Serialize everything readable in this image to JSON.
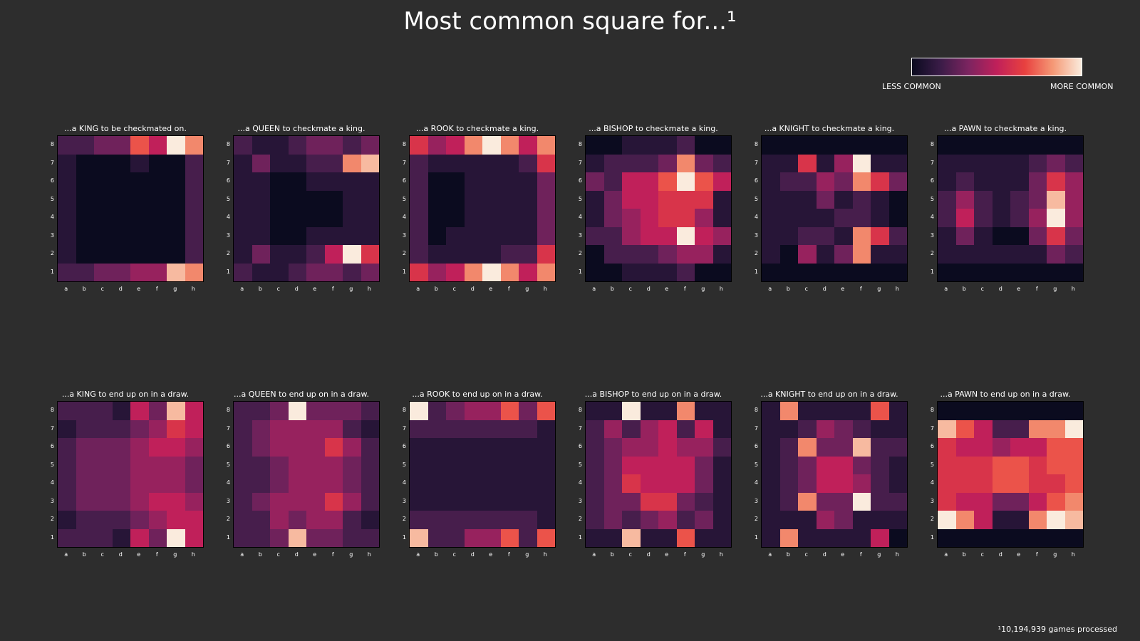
{
  "title": "Most common square for...¹",
  "colorbar": {
    "less_label": "LESS COMMON",
    "more_label": "MORE COMMON",
    "colors": [
      "#0b0b1f",
      "#3a1c47",
      "#7c2460",
      "#c0205a",
      "#e8413f",
      "#f59a77",
      "#faebdd"
    ]
  },
  "footnote": "¹10,194,939 games processed",
  "chart_data": {
    "type": "heatmap",
    "files": [
      "a",
      "b",
      "c",
      "d",
      "e",
      "f",
      "g",
      "h"
    ],
    "ranks": [
      "8",
      "7",
      "6",
      "5",
      "4",
      "3",
      "2",
      "1"
    ],
    "value_scale": "relative frequency 0-10 (rows listed from rank 8 down to rank 1)",
    "panels": [
      {
        "title": "...a KING to be checkmated on.",
        "grid": [
          [
            2,
            2,
            3,
            3,
            7,
            5,
            10,
            8
          ],
          [
            1,
            0,
            0,
            0,
            1,
            0,
            0,
            2
          ],
          [
            1,
            0,
            0,
            0,
            0,
            0,
            0,
            2
          ],
          [
            1,
            0,
            0,
            0,
            0,
            0,
            0,
            2
          ],
          [
            1,
            0,
            0,
            0,
            0,
            0,
            0,
            2
          ],
          [
            1,
            0,
            0,
            0,
            0,
            0,
            0,
            2
          ],
          [
            1,
            0,
            0,
            0,
            0,
            0,
            0,
            2
          ],
          [
            2,
            2,
            3,
            3,
            4,
            4,
            9,
            8
          ]
        ]
      },
      {
        "title": "...a QUEEN to checkmate a king.",
        "grid": [
          [
            2,
            1,
            1,
            2,
            3,
            3,
            2,
            3
          ],
          [
            1,
            3,
            1,
            1,
            2,
            2,
            8,
            9
          ],
          [
            1,
            1,
            0,
            0,
            1,
            1,
            1,
            1
          ],
          [
            1,
            1,
            0,
            0,
            0,
            0,
            1,
            1
          ],
          [
            1,
            1,
            0,
            0,
            0,
            0,
            1,
            1
          ],
          [
            1,
            1,
            0,
            0,
            1,
            1,
            1,
            1
          ],
          [
            1,
            3,
            1,
            1,
            2,
            5,
            10,
            6
          ],
          [
            2,
            1,
            1,
            2,
            3,
            3,
            2,
            3
          ]
        ]
      },
      {
        "title": "...a ROOK to checkmate a king.",
        "grid": [
          [
            6,
            4,
            5,
            8,
            10,
            8,
            5,
            8
          ],
          [
            2,
            1,
            1,
            1,
            1,
            1,
            2,
            6
          ],
          [
            2,
            0,
            0,
            1,
            1,
            1,
            1,
            3
          ],
          [
            2,
            0,
            0,
            1,
            1,
            1,
            1,
            3
          ],
          [
            2,
            0,
            0,
            1,
            1,
            1,
            1,
            3
          ],
          [
            2,
            0,
            1,
            1,
            1,
            1,
            1,
            3
          ],
          [
            2,
            1,
            1,
            1,
            1,
            2,
            2,
            6
          ],
          [
            6,
            4,
            5,
            8,
            10,
            8,
            5,
            8
          ]
        ]
      },
      {
        "title": "...a BISHOP to checkmate a king.",
        "grid": [
          [
            0,
            0,
            1,
            1,
            1,
            2,
            0,
            0
          ],
          [
            1,
            2,
            2,
            2,
            3,
            8,
            3,
            2
          ],
          [
            3,
            2,
            5,
            5,
            7,
            10,
            7,
            5
          ],
          [
            1,
            3,
            5,
            5,
            6,
            6,
            6,
            1
          ],
          [
            1,
            3,
            4,
            5,
            6,
            6,
            4,
            1
          ],
          [
            2,
            2,
            4,
            5,
            5,
            10,
            5,
            4
          ],
          [
            0,
            2,
            2,
            2,
            3,
            4,
            4,
            1
          ],
          [
            0,
            0,
            1,
            1,
            1,
            2,
            0,
            0
          ]
        ]
      },
      {
        "title": "...a KNIGHT to checkmate a king.",
        "grid": [
          [
            0,
            0,
            0,
            0,
            0,
            0,
            0,
            0
          ],
          [
            1,
            1,
            6,
            1,
            4,
            10,
            1,
            1
          ],
          [
            1,
            2,
            2,
            4,
            3,
            8,
            6,
            3
          ],
          [
            1,
            1,
            1,
            3,
            1,
            2,
            1,
            0
          ],
          [
            1,
            1,
            1,
            1,
            2,
            2,
            1,
            0
          ],
          [
            1,
            1,
            2,
            2,
            1,
            8,
            6,
            2
          ],
          [
            1,
            0,
            4,
            1,
            3,
            8,
            1,
            1
          ],
          [
            0,
            0,
            0,
            0,
            0,
            0,
            0,
            0
          ]
        ]
      },
      {
        "title": "...a PAWN to checkmate a king.",
        "grid": [
          [
            0,
            0,
            0,
            0,
            0,
            0,
            0,
            0
          ],
          [
            1,
            1,
            1,
            1,
            1,
            2,
            3,
            2
          ],
          [
            1,
            2,
            1,
            1,
            1,
            3,
            6,
            4
          ],
          [
            2,
            4,
            2,
            1,
            2,
            3,
            9,
            4
          ],
          [
            2,
            5,
            2,
            1,
            2,
            4,
            10,
            4
          ],
          [
            1,
            3,
            1,
            0,
            0,
            3,
            6,
            3
          ],
          [
            1,
            1,
            1,
            1,
            1,
            1,
            3,
            2
          ],
          [
            0,
            0,
            0,
            0,
            0,
            0,
            0,
            0
          ]
        ]
      },
      {
        "title": "...a KING to end up on in a draw.",
        "grid": [
          [
            2,
            2,
            2,
            1,
            5,
            3,
            9,
            5
          ],
          [
            1,
            2,
            2,
            2,
            3,
            4,
            6,
            5
          ],
          [
            2,
            3,
            3,
            3,
            4,
            5,
            5,
            4
          ],
          [
            2,
            3,
            3,
            3,
            4,
            4,
            4,
            3
          ],
          [
            2,
            3,
            3,
            3,
            4,
            4,
            4,
            3
          ],
          [
            2,
            3,
            3,
            3,
            4,
            5,
            5,
            4
          ],
          [
            1,
            2,
            2,
            2,
            3,
            4,
            5,
            5
          ],
          [
            2,
            2,
            2,
            1,
            5,
            3,
            10,
            5
          ]
        ]
      },
      {
        "title": "...a QUEEN to end up on in a draw.",
        "grid": [
          [
            2,
            2,
            3,
            10,
            3,
            3,
            3,
            2
          ],
          [
            2,
            3,
            4,
            4,
            4,
            4,
            2,
            1
          ],
          [
            2,
            3,
            4,
            4,
            4,
            6,
            4,
            2
          ],
          [
            2,
            2,
            3,
            4,
            4,
            4,
            3,
            2
          ],
          [
            2,
            2,
            3,
            4,
            4,
            4,
            3,
            2
          ],
          [
            2,
            3,
            4,
            4,
            4,
            6,
            4,
            2
          ],
          [
            2,
            2,
            4,
            3,
            4,
            4,
            2,
            1
          ],
          [
            2,
            2,
            3,
            9,
            3,
            3,
            2,
            2
          ]
        ]
      },
      {
        "title": "...a ROOK to end up on in a draw.",
        "grid": [
          [
            10,
            2,
            3,
            4,
            4,
            7,
            3,
            7
          ],
          [
            2,
            2,
            2,
            2,
            2,
            2,
            2,
            1
          ],
          [
            1,
            1,
            1,
            1,
            1,
            1,
            1,
            1
          ],
          [
            1,
            1,
            1,
            1,
            1,
            1,
            1,
            1
          ],
          [
            1,
            1,
            1,
            1,
            1,
            1,
            1,
            1
          ],
          [
            1,
            1,
            1,
            1,
            1,
            1,
            1,
            1
          ],
          [
            2,
            2,
            2,
            2,
            2,
            2,
            2,
            1
          ],
          [
            9,
            2,
            2,
            4,
            4,
            7,
            2,
            7
          ]
        ]
      },
      {
        "title": "...a BISHOP to end up on in a draw.",
        "grid": [
          [
            1,
            1,
            10,
            1,
            1,
            8,
            1,
            1
          ],
          [
            2,
            4,
            2,
            4,
            5,
            2,
            5,
            1
          ],
          [
            2,
            3,
            4,
            4,
            5,
            4,
            4,
            2
          ],
          [
            2,
            3,
            5,
            5,
            5,
            5,
            3,
            1
          ],
          [
            2,
            3,
            6,
            5,
            5,
            5,
            3,
            1
          ],
          [
            2,
            3,
            3,
            6,
            6,
            3,
            2,
            1
          ],
          [
            2,
            3,
            2,
            3,
            4,
            2,
            3,
            1
          ],
          [
            1,
            1,
            9,
            1,
            1,
            7,
            1,
            1
          ]
        ]
      },
      {
        "title": "...a KNIGHT to end up on in a draw.",
        "grid": [
          [
            1,
            8,
            1,
            1,
            1,
            1,
            7,
            1
          ],
          [
            1,
            1,
            2,
            4,
            3,
            2,
            1,
            1
          ],
          [
            1,
            2,
            8,
            3,
            3,
            9,
            2,
            2
          ],
          [
            1,
            2,
            3,
            5,
            5,
            3,
            2,
            1
          ],
          [
            1,
            2,
            3,
            5,
            5,
            4,
            2,
            1
          ],
          [
            1,
            2,
            8,
            3,
            3,
            10,
            2,
            2
          ],
          [
            1,
            1,
            1,
            4,
            3,
            1,
            1,
            1
          ],
          [
            1,
            8,
            1,
            1,
            1,
            1,
            5,
            0
          ]
        ]
      },
      {
        "title": "...a PAWN to end up on in a draw.",
        "grid": [
          [
            0,
            0,
            0,
            0,
            0,
            0,
            0,
            0
          ],
          [
            9,
            7,
            5,
            2,
            2,
            8,
            8,
            10
          ],
          [
            6,
            5,
            5,
            4,
            5,
            5,
            7,
            7
          ],
          [
            6,
            6,
            6,
            7,
            7,
            6,
            7,
            7
          ],
          [
            6,
            6,
            6,
            7,
            7,
            6,
            6,
            7
          ],
          [
            6,
            5,
            5,
            3,
            3,
            5,
            7,
            8
          ],
          [
            10,
            8,
            5,
            1,
            1,
            8,
            10,
            9
          ],
          [
            0,
            0,
            0,
            0,
            0,
            0,
            0,
            0
          ]
        ]
      }
    ]
  }
}
